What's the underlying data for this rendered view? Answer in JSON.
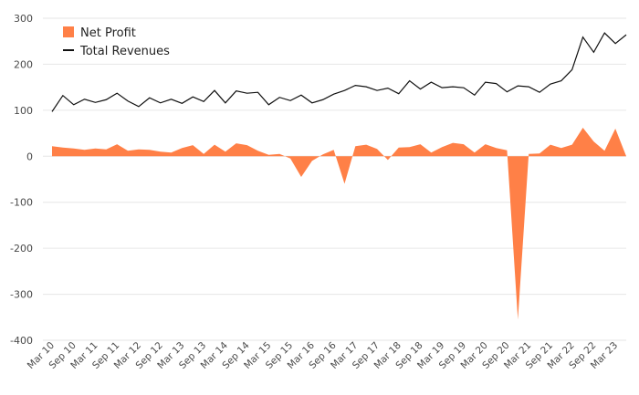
{
  "chart_data": {
    "type": "area",
    "title": "",
    "xlabel": "",
    "ylabel": "",
    "ylim": [
      -400,
      300
    ],
    "yticks": [
      300,
      200,
      100,
      0,
      -100,
      -200,
      -300,
      -400
    ],
    "grid": true,
    "legend_position": "top-left",
    "x_tick_labels": [
      "Mar 10",
      "Sep 10",
      "Mar 11",
      "Sep 11",
      "Mar 12",
      "Sep 12",
      "Mar 13",
      "Sep 13",
      "Mar 14",
      "Sep 14",
      "Mar 15",
      "Sep 15",
      "Mar 16",
      "Sep 16",
      "Mar 17",
      "Sep 17",
      "Mar 18",
      "Sep 18",
      "Mar 19",
      "Sep 19",
      "Mar 20",
      "Sep 20",
      "Mar 21",
      "Sep 21",
      "Mar 22",
      "Sep 22",
      "Mar 23"
    ],
    "x": [
      "Mar 10",
      "Jun 10",
      "Sep 10",
      "Dec 10",
      "Mar 11",
      "Jun 11",
      "Sep 11",
      "Dec 11",
      "Mar 12",
      "Jun 12",
      "Sep 12",
      "Dec 12",
      "Mar 13",
      "Jun 13",
      "Sep 13",
      "Dec 13",
      "Mar 14",
      "Jun 14",
      "Sep 14",
      "Dec 14",
      "Mar 15",
      "Jun 15",
      "Sep 15",
      "Dec 15",
      "Mar 16",
      "Jun 16",
      "Sep 16",
      "Dec 16",
      "Mar 17",
      "Jun 17",
      "Sep 17",
      "Dec 17",
      "Mar 18",
      "Jun 18",
      "Sep 18",
      "Dec 18",
      "Mar 19",
      "Jun 19",
      "Sep 19",
      "Dec 19",
      "Mar 20",
      "Jun 20",
      "Sep 20",
      "Dec 20",
      "Mar 21",
      "Jun 21",
      "Sep 21",
      "Dec 21",
      "Mar 22",
      "Jun 22",
      "Sep 22",
      "Dec 22",
      "Mar 23",
      "Jun 23"
    ],
    "series": [
      {
        "name": "Net Profit",
        "kind": "area",
        "color": "#ff8047",
        "values": [
          22,
          19,
          17,
          14,
          17,
          15,
          26,
          12,
          15,
          14,
          10,
          8,
          18,
          24,
          5,
          25,
          10,
          28,
          24,
          12,
          3,
          5,
          -5,
          -45,
          -10,
          4,
          14,
          -60,
          22,
          25,
          16,
          -8,
          19,
          20,
          26,
          8,
          20,
          29,
          26,
          8,
          26,
          18,
          13,
          -355,
          5,
          6,
          25,
          18,
          25,
          62,
          32,
          12,
          60,
          0
        ]
      },
      {
        "name": "Total Revenues",
        "kind": "line",
        "color": "#111111",
        "values": [
          97,
          132,
          112,
          124,
          117,
          123,
          137,
          120,
          108,
          127,
          116,
          124,
          115,
          129,
          119,
          143,
          116,
          142,
          137,
          139,
          112,
          128,
          121,
          133,
          116,
          123,
          135,
          143,
          154,
          151,
          143,
          148,
          136,
          164,
          146,
          161,
          149,
          151,
          149,
          133,
          161,
          158,
          140,
          153,
          151,
          139,
          157,
          164,
          188,
          259,
          226,
          268,
          245,
          264
        ]
      }
    ]
  }
}
